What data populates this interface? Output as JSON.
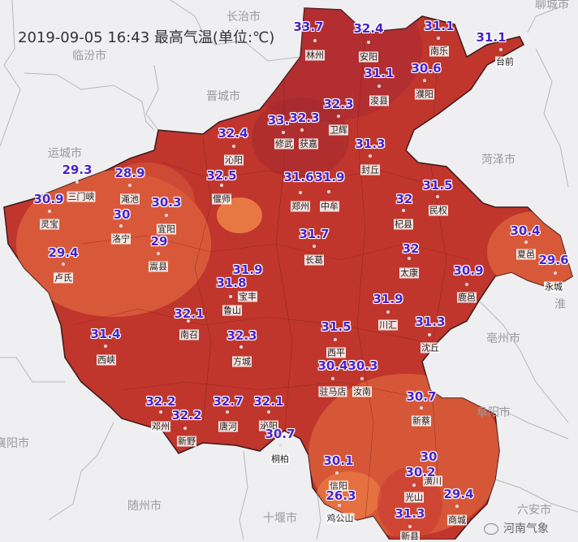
{
  "title": "2019-09-05 16:43 最高气温(单位:℃)",
  "watermark": "河南气象",
  "colors": {
    "background": "#efeef1",
    "hot": "#c0362c",
    "hotter": "#a82a33",
    "warm": "#e0653d",
    "temp_label": "#4a22c8"
  },
  "neighbor_cities": [
    "长治市",
    "临汾市",
    "晋城市",
    "运城市",
    "聊城市",
    "菏泽市",
    "亳州市",
    "阜阳市",
    "六安市",
    "襄阳市",
    "随州市",
    "十堰市",
    "淮"
  ],
  "stations": [
    {
      "name": "林州",
      "temp": "33.7"
    },
    {
      "name": "安阳",
      "temp": "32.4"
    },
    {
      "name": "南乐",
      "temp": "31.1"
    },
    {
      "name": "台前",
      "temp": "31.1"
    },
    {
      "name": "浚县",
      "temp": "31.1"
    },
    {
      "name": "濮阳",
      "temp": "30.6"
    },
    {
      "name": "卫辉",
      "temp": "32.3"
    },
    {
      "name": "获嘉",
      "temp": "32.3"
    },
    {
      "name": "修武",
      "temp": "33."
    },
    {
      "name": "沁阳",
      "temp": "32.4"
    },
    {
      "name": "偃师",
      "temp": "32.5"
    },
    {
      "name": "封丘",
      "temp": "31.3"
    },
    {
      "name": "郑州",
      "temp": "31.6"
    },
    {
      "name": "中牟",
      "temp": "31.9"
    },
    {
      "name": "民权",
      "temp": "31.5"
    },
    {
      "name": "杞县",
      "temp": "32"
    },
    {
      "name": "长葛",
      "temp": "31.7"
    },
    {
      "name": "太康",
      "temp": "32"
    },
    {
      "name": "夏邑",
      "temp": "30.4"
    },
    {
      "name": "永城",
      "temp": "29.6"
    },
    {
      "name": "鹿邑",
      "temp": "30.9"
    },
    {
      "name": "宝丰",
      "temp": "31.9"
    },
    {
      "name": "鲁山",
      "temp": "31.8"
    },
    {
      "name": "南召",
      "temp": "32.1"
    },
    {
      "name": "方城",
      "temp": "32.3"
    },
    {
      "name": "西峡",
      "temp": "31.4"
    },
    {
      "name": "邓州",
      "temp": "32.2"
    },
    {
      "name": "新野",
      "temp": "32.2"
    },
    {
      "name": "唐河",
      "temp": "32.7"
    },
    {
      "name": "泌阳",
      "temp": "32.1"
    },
    {
      "name": "桐柏",
      "temp": "30.7"
    },
    {
      "name": "川汇",
      "temp": "31.9"
    },
    {
      "name": "沈丘",
      "temp": "31.3"
    },
    {
      "name": "西平",
      "temp": "31.5"
    },
    {
      "name": "驻马店",
      "temp": "30.4"
    },
    {
      "name": "汝南",
      "temp": "30.3"
    },
    {
      "name": "新蔡",
      "temp": "30.7"
    },
    {
      "name": "信阳",
      "temp": "30.1"
    },
    {
      "name": "鸡公山",
      "temp": "26.3"
    },
    {
      "name": "潢川",
      "temp": "30"
    },
    {
      "name": "光山",
      "temp": "30.2"
    },
    {
      "name": "新县",
      "temp": "31.3"
    },
    {
      "name": "商城",
      "temp": "29.4"
    },
    {
      "name": "三门峡",
      "temp": "29.3"
    },
    {
      "name": "灵宝",
      "temp": "30.9"
    },
    {
      "name": "渑池",
      "temp": "28.9"
    },
    {
      "name": "洛宁",
      "temp": "30"
    },
    {
      "name": "宜阳",
      "temp": "30.3"
    },
    {
      "name": "嵩县",
      "temp": "29"
    },
    {
      "name": "卢氏",
      "temp": "29.4"
    }
  ]
}
